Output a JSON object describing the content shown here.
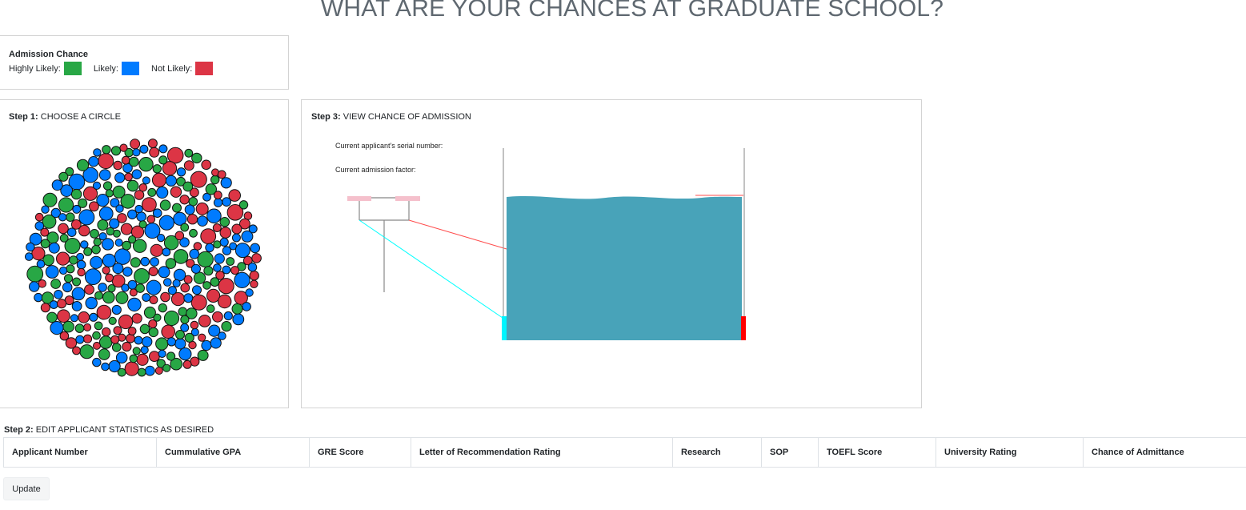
{
  "page": {
    "title": "WHAT ARE YOUR CHANCES AT GRADUATE SCHOOL?"
  },
  "legend": {
    "title": "Admission Chance",
    "items": [
      {
        "label": "Highly Likely:",
        "color": "#28a745"
      },
      {
        "label": "Likely:",
        "color": "#007bff"
      },
      {
        "label": "Not Likely:",
        "color": "#dc3545"
      }
    ]
  },
  "step1": {
    "prefix": "Step 1:",
    "text": "CHOOSE A CIRCLE"
  },
  "step3": {
    "prefix": "Step 3:",
    "text": "VIEW CHANCE OF ADMISSION",
    "serial_label": "Current applicant's serial number:",
    "factor_label": "Current admission factor:",
    "water_color": "#48a3b9",
    "left_marker_color": "#00f5ff",
    "right_marker_color": "#ff0000"
  },
  "step2": {
    "prefix": "Step 2:",
    "text": "EDIT APPLICANT STATISTICS AS DESIRED",
    "columns": [
      "Applicant Number",
      "Cummulative GPA",
      "GRE Score",
      "Letter of Recommendation Rating",
      "Research",
      "SOP",
      "TOEFL Score",
      "University Rating",
      "Chance of Admittance"
    ]
  },
  "update_button": {
    "label": "Update"
  }
}
